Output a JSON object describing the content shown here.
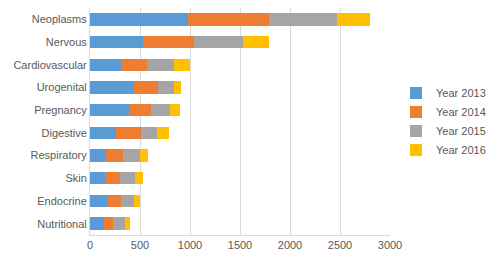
{
  "chart_data": {
    "type": "bar",
    "orientation": "horizontal",
    "stacked": true,
    "grid": true,
    "legend": "right",
    "categories": [
      "Neoplasms",
      "Nervous",
      "Cardiovascular",
      "Urogenital",
      "Pregnancy",
      "Digestive",
      "Respiratory",
      "Skin",
      "Endocrine",
      "Nutritional"
    ],
    "series": [
      {
        "name": "Year 2013",
        "color": "#5B9BD5",
        "values": [
          980,
          530,
          310,
          440,
          390,
          260,
          160,
          150,
          180,
          140
        ]
      },
      {
        "name": "Year 2014",
        "color": "#ED7D31",
        "values": [
          810,
          510,
          260,
          240,
          220,
          250,
          170,
          150,
          130,
          90
        ]
      },
      {
        "name": "Year 2015",
        "color": "#A5A5A5",
        "values": [
          680,
          490,
          270,
          160,
          190,
          160,
          170,
          150,
          130,
          120
        ]
      },
      {
        "name": "Year 2016",
        "color": "#FFC000",
        "values": [
          330,
          260,
          160,
          70,
          100,
          120,
          80,
          80,
          60,
          50
        ]
      }
    ],
    "xlim": [
      0,
      3000
    ],
    "xticks": [
      0,
      500,
      1000,
      1500,
      2000,
      2500,
      3000
    ]
  }
}
